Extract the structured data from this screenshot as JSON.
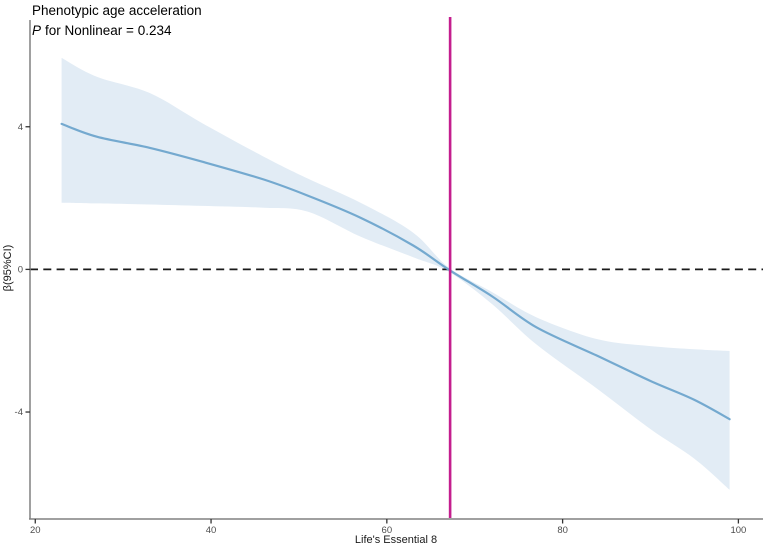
{
  "title": "Phenotypic age acceleration",
  "subtitle": {
    "p_label": "P",
    "text": "for Nonlinear = 0.234"
  },
  "colors": {
    "fit_line": "#74a9cf",
    "ci_band": "#e2ecf5",
    "vline": "#c41e8e",
    "reference_line": "#1a1a1a",
    "axis": "#808080",
    "tick": "#333333"
  },
  "chart_data": {
    "type": "line",
    "title": "Phenotypic age acceleration",
    "annotation": "P for Nonlinear = 0.234",
    "xlabel": "Life's Essential 8",
    "ylabel": "β(95%CI)",
    "x_ticks": [
      20,
      40,
      60,
      80,
      100
    ],
    "y_ticks": [
      4,
      0,
      -4
    ],
    "xlim": [
      19.4,
      102.8
    ],
    "ylim": [
      -7.0,
      7.05
    ],
    "grid": false,
    "legend": "none",
    "reference_y": 0,
    "vline_x": 67.2,
    "series": [
      {
        "name": "fitted-beta",
        "x": [
          23,
          27,
          33,
          39,
          46,
          51,
          57,
          63,
          67,
          72,
          77,
          84,
          90,
          95,
          99
        ],
        "y": [
          4.08,
          3.72,
          3.41,
          3.02,
          2.52,
          2.07,
          1.45,
          0.67,
          0.0,
          -0.76,
          -1.62,
          -2.43,
          -3.13,
          -3.66,
          -4.2
        ]
      },
      {
        "name": "ci-upper",
        "x": [
          23,
          27,
          33,
          39,
          46,
          51,
          57,
          63,
          67,
          72,
          77,
          84,
          90,
          95,
          99
        ],
        "y": [
          5.93,
          5.4,
          4.95,
          4.1,
          3.16,
          2.55,
          1.87,
          1.03,
          0.06,
          -0.64,
          -1.34,
          -1.96,
          -2.15,
          -2.24,
          -2.29
        ]
      },
      {
        "name": "ci-lower",
        "x": [
          23,
          27,
          33,
          39,
          46,
          51,
          57,
          63,
          67,
          72,
          77,
          84,
          90,
          95,
          99
        ],
        "y": [
          1.87,
          1.85,
          1.82,
          1.78,
          1.73,
          1.62,
          0.92,
          0.34,
          -0.06,
          -0.98,
          -2.1,
          -3.36,
          -4.48,
          -5.31,
          -6.18
        ]
      }
    ]
  }
}
